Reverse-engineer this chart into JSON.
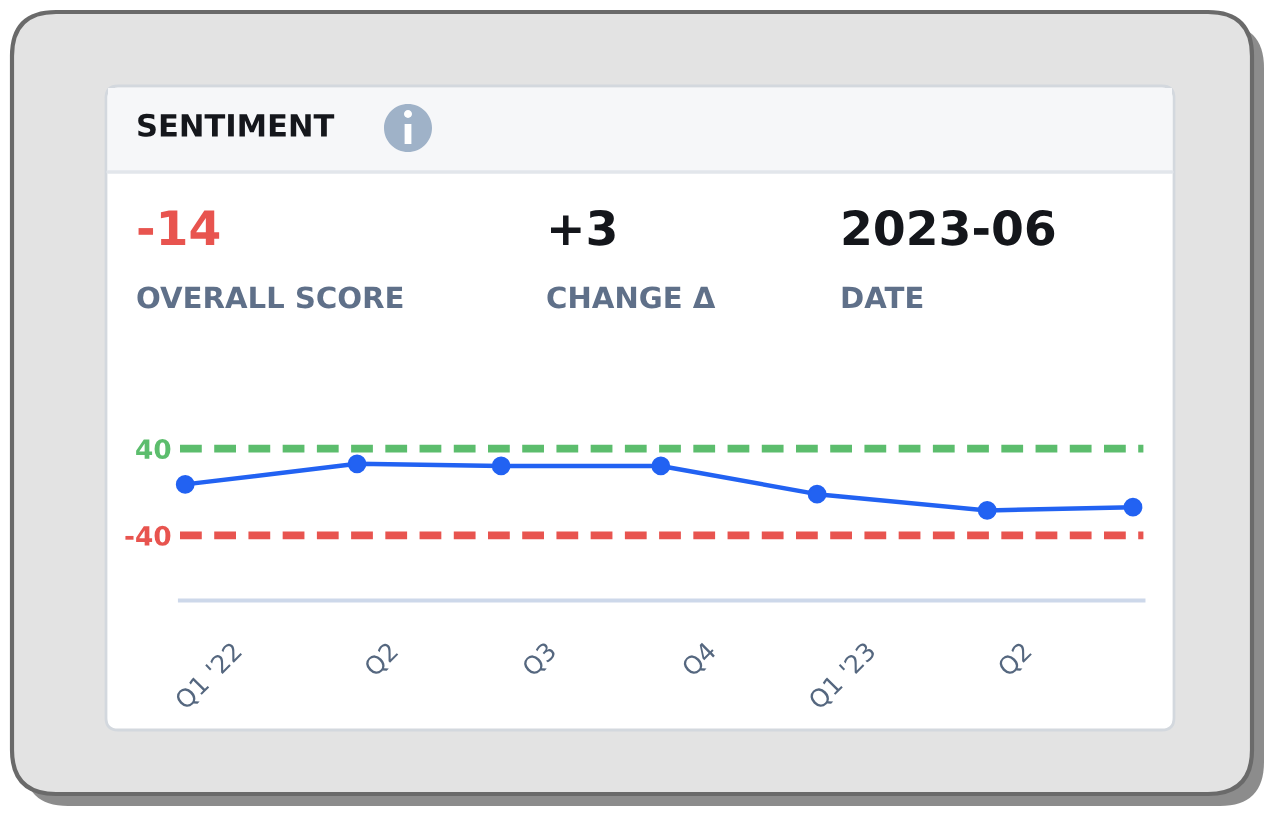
{
  "chart_data": {
    "type": "line",
    "title": "SENTIMENT",
    "annotations": [
      "-14",
      "OVERALL SCORE",
      "+3",
      "CHANGE Δ",
      "2023-06",
      "DATE"
    ],
    "x": [
      "2021-12-06",
      "2022-03-15",
      "2022-06-06",
      "2022-09-06",
      "2022-12-05",
      "2023-03-13",
      "2023-06-05"
    ],
    "series": [
      {
        "color": "#2262f2",
        "values": [
          7,
          26,
          24,
          24,
          -2,
          -17,
          -14
        ]
      }
    ],
    "xlim": [
      "2021-12-03",
      "2023-06-11"
    ],
    "xticks": [
      {
        "value": "2022-01-01",
        "label": "Q1 '22"
      },
      {
        "value": "2022-04-01",
        "label": "Q2"
      },
      {
        "value": "2022-07-01",
        "label": "Q3"
      },
      {
        "value": "2022-10-01",
        "label": "Q4"
      },
      {
        "value": "2023-01-01",
        "label": "Q1 '23"
      },
      {
        "value": "2023-04-01",
        "label": "Q2"
      }
    ],
    "ylim": [
      -100,
      40
    ],
    "yticks": [
      40,
      -40
    ],
    "ref_lines": [
      {
        "axis": "y",
        "value": 40,
        "color": "#5cbd6d",
        "line_style": "dashed"
      },
      {
        "axis": "y",
        "value": -40,
        "color": "#e8544f",
        "line_style": "dashed"
      }
    ],
    "marker": "circle",
    "line_style": "solid"
  }
}
